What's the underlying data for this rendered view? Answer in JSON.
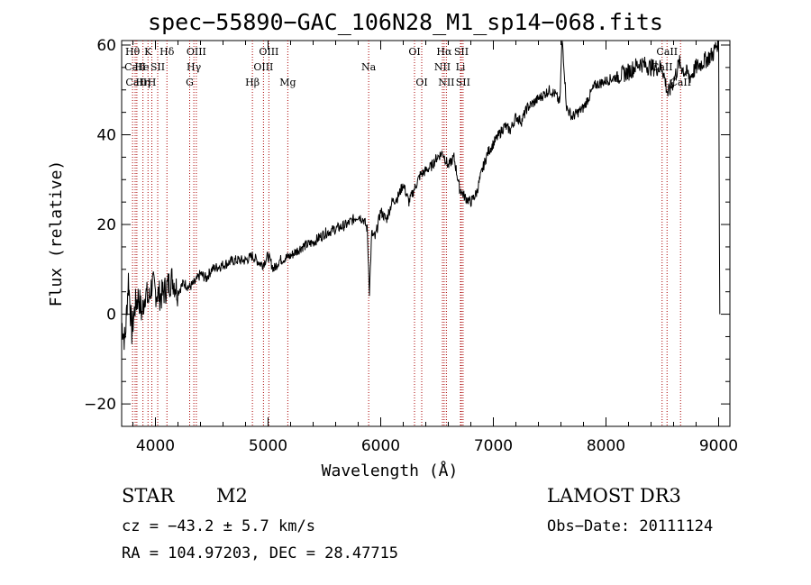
{
  "chart_data": {
    "type": "line",
    "title": "spec−55890−GAC_106N28_M1_sp14−068.fits",
    "xlabel": "Wavelength (Å)",
    "ylabel": "Flux (relative)",
    "xlim": [
      3700,
      9100
    ],
    "ylim": [
      -25,
      61
    ],
    "xticks": [
      4000,
      5000,
      6000,
      7000,
      8000,
      9000
    ],
    "yticks": [
      -20,
      0,
      20,
      40,
      60
    ],
    "series": [
      {
        "name": "spectrum",
        "x": [
          3700,
          3730,
          3760,
          3790,
          3820,
          3850,
          3880,
          3910,
          3940,
          3970,
          4000,
          4050,
          4100,
          4150,
          4200,
          4250,
          4300,
          4350,
          4400,
          4450,
          4500,
          4600,
          4700,
          4800,
          4860,
          4900,
          4950,
          5000,
          5050,
          5100,
          5200,
          5300,
          5400,
          5500,
          5600,
          5700,
          5800,
          5850,
          5880,
          5900,
          5920,
          5950,
          6000,
          6050,
          6100,
          6150,
          6200,
          6250,
          6300,
          6350,
          6400,
          6450,
          6500,
          6550,
          6600,
          6650,
          6700,
          6750,
          6800,
          6850,
          6900,
          6950,
          7000,
          7050,
          7100,
          7150,
          7200,
          7250,
          7300,
          7400,
          7500,
          7550,
          7590,
          7610,
          7650,
          7700,
          7800,
          7900,
          8000,
          8100,
          8200,
          8300,
          8400,
          8500,
          8550,
          8600,
          8650,
          8700,
          8750,
          8800,
          8850,
          8900,
          8950,
          8980,
          9000,
          9010
        ],
        "y": [
          -2,
          -6,
          8,
          -4,
          2,
          4,
          0,
          5,
          3,
          7,
          5,
          4,
          6,
          8,
          5,
          7,
          6,
          7,
          9,
          8,
          10,
          11,
          12,
          12,
          13,
          12,
          11,
          13,
          10,
          12,
          13,
          15,
          16,
          18,
          19,
          20,
          22,
          21,
          19,
          5,
          18,
          17,
          23,
          21,
          25,
          26,
          29,
          25,
          28,
          31,
          32,
          33,
          35,
          36,
          33,
          35,
          28,
          26,
          25,
          27,
          32,
          36,
          38,
          40,
          42,
          41,
          44,
          43,
          46,
          48,
          50,
          49,
          47,
          62,
          46,
          44,
          46,
          51,
          52,
          53,
          54,
          56,
          55,
          55,
          49,
          52,
          56,
          54,
          53,
          55,
          56,
          57,
          58,
          60,
          61,
          0
        ]
      }
    ],
    "line_labels": [
      {
        "name": "Hθ",
        "wl": 3797,
        "row": 0
      },
      {
        "name": "CaII",
        "wl": 3820,
        "row": 1
      },
      {
        "name": "CaII",
        "wl": 3830,
        "row": 2
      },
      {
        "name": "K",
        "wl": 3934,
        "row": 0
      },
      {
        "name": "He",
        "wl": 3880,
        "row": 1
      },
      {
        "name": "Hη",
        "wl": 3889,
        "row": 2
      },
      {
        "name": "H",
        "wl": 3968,
        "row": 2
      },
      {
        "name": "SII",
        "wl": 4020,
        "row": 1
      },
      {
        "name": "Hδ",
        "wl": 4102,
        "row": 0
      },
      {
        "name": "OIII",
        "wl": 4363,
        "row": 0
      },
      {
        "name": "Hγ",
        "wl": 4341,
        "row": 1
      },
      {
        "name": "G",
        "wl": 4304,
        "row": 2
      },
      {
        "name": "Hβ",
        "wl": 4861,
        "row": 2
      },
      {
        "name": "OIII",
        "wl": 5007,
        "row": 0
      },
      {
        "name": "OIII",
        "wl": 4959,
        "row": 1
      },
      {
        "name": "Mg",
        "wl": 5175,
        "row": 2
      },
      {
        "name": "Na",
        "wl": 5893,
        "row": 1
      },
      {
        "name": "OI",
        "wl": 6300,
        "row": 0
      },
      {
        "name": "OI",
        "wl": 6364,
        "row": 2
      },
      {
        "name": "Hα",
        "wl": 6563,
        "row": 0
      },
      {
        "name": "NII",
        "wl": 6548,
        "row": 1
      },
      {
        "name": "NII",
        "wl": 6583,
        "row": 2
      },
      {
        "name": "SII",
        "wl": 6716,
        "row": 0
      },
      {
        "name": "Li",
        "wl": 6708,
        "row": 1
      },
      {
        "name": "SII",
        "wl": 6731,
        "row": 2
      },
      {
        "name": "CaII",
        "wl": 8542,
        "row": 0
      },
      {
        "name": "CaII",
        "wl": 8498,
        "row": 1
      },
      {
        "name": "CaII",
        "wl": 8662,
        "row": 2
      }
    ],
    "line_marker_wavelengths": [
      3797,
      3820,
      3835,
      3889,
      3934,
      3968,
      4020,
      4102,
      4304,
      4341,
      4363,
      4861,
      4959,
      5007,
      5175,
      5893,
      6300,
      6364,
      6548,
      6563,
      6583,
      6708,
      6716,
      6731,
      8498,
      8542,
      8662
    ]
  },
  "info": {
    "class": "STAR",
    "subclass": "M2",
    "survey": "LAMOST DR3",
    "cz": "cz = −43.2 ± 5.7 km/s",
    "obs_date": "Obs−Date: 20111124",
    "coords": "RA = 104.97203, DEC =  28.47715"
  },
  "colors": {
    "axis": "#000000",
    "marker": "#aa0000",
    "spectrum": "#000000"
  }
}
